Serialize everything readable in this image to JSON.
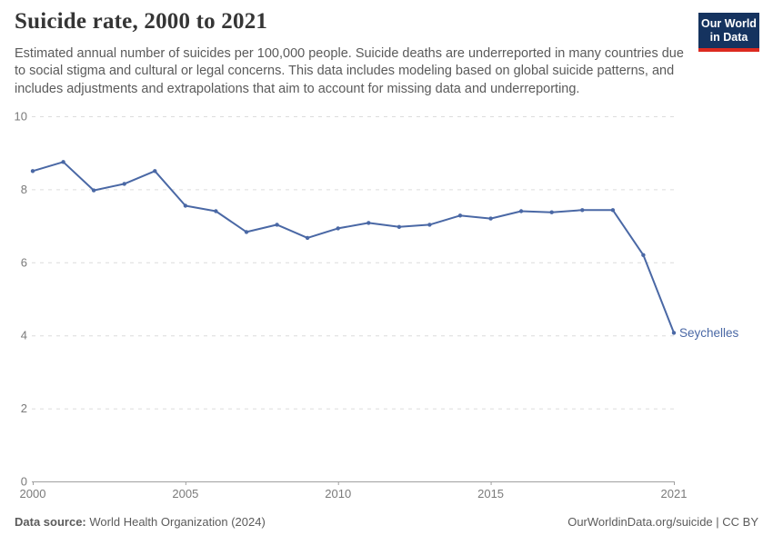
{
  "header": {
    "title": "Suicide rate, 2000 to 2021",
    "subtitle": "Estimated annual number of suicides per 100,000 people. Suicide deaths are underreported in many countries due to social stigma and cultural or legal concerns. This data includes modeling based on global suicide patterns, and includes adjustments and extrapolations that aim to account for missing data and underreporting."
  },
  "logo": {
    "line1": "Our World",
    "line2": "in Data",
    "bg_color": "#15335f",
    "accent_color": "#dc2a20"
  },
  "chart_data": {
    "type": "line",
    "title": "Suicide rate, 2000 to 2021",
    "ylabel": "",
    "xlabel": "",
    "ylim": [
      0,
      10
    ],
    "yticks": [
      0,
      2,
      4,
      6,
      8,
      10
    ],
    "xticks": [
      2000,
      2005,
      2010,
      2015,
      2021
    ],
    "grid": "horizontal-dashed",
    "legend_position": "end-of-line-label",
    "x": [
      2000,
      2001,
      2002,
      2003,
      2004,
      2005,
      2006,
      2007,
      2008,
      2009,
      2010,
      2011,
      2012,
      2013,
      2014,
      2015,
      2016,
      2017,
      2018,
      2019,
      2020,
      2021
    ],
    "series": [
      {
        "name": "Seychelles",
        "color": "#4a68a5",
        "values": [
          8.5,
          8.75,
          7.97,
          8.15,
          8.5,
          7.55,
          7.4,
          6.83,
          7.03,
          6.67,
          6.93,
          7.08,
          6.97,
          7.03,
          7.28,
          7.2,
          7.4,
          7.37,
          7.43,
          7.43,
          6.2,
          4.07
        ]
      }
    ],
    "colors": {
      "gridline": "#dcdcdc",
      "axis_line": "#a0a0a0",
      "tick_label": "#7a7a7a"
    }
  },
  "footer": {
    "source_label": "Data source:",
    "source_value": "World Health Organization (2024)",
    "license": "OurWorldinData.org/suicide | CC BY"
  }
}
